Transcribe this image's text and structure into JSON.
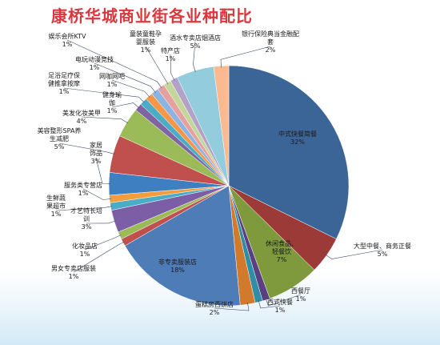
{
  "chart_data": {
    "type": "pie",
    "title": "康桥华城商业街各业种配比",
    "slices": [
      {
        "name": "中式快餐简餐",
        "value_label": "32%",
        "value": 32,
        "color": "#3c6597"
      },
      {
        "name": "大型中餐、商务正餐",
        "value_label": "5%",
        "value": 5,
        "color": "#9b3a37"
      },
      {
        "name": "休闲食品、轻餐饮",
        "value_label": "7%",
        "value": 7,
        "color": "#7e9a3c"
      },
      {
        "name": "西餐厅",
        "value_label": "1%",
        "value": 1,
        "color": "#5a4080"
      },
      {
        "name": "西式快餐",
        "value_label": "1%",
        "value": 1,
        "color": "#2f8da6"
      },
      {
        "name": "蛋糕房西饼店",
        "value_label": "2%",
        "value": 2,
        "color": "#d27a2c"
      },
      {
        "name": "非专卖服装店",
        "value_label": "18%",
        "value": 18,
        "color": "#4e7cb6"
      },
      {
        "name": "男女专卖店服装",
        "value_label": "1%",
        "value": 1,
        "color": "#c0504d"
      },
      {
        "name": "化妆品店",
        "value_label": "1%",
        "value": 1,
        "color": "#9bbb59"
      },
      {
        "name": "才艺特长培训",
        "value_label": "3%",
        "value": 3,
        "color": "#7b5ea6"
      },
      {
        "name": "生鲜蔬果超市",
        "value_label": "1%",
        "value": 1,
        "color": "#4bacc6"
      },
      {
        "name": "服务类专营店",
        "value_label": "1%",
        "value": 1,
        "color": "#f59d3d"
      },
      {
        "name": "家居饰品",
        "value_label": "3%",
        "value": 3,
        "color": "#3d7fc1"
      },
      {
        "name": "美容整形SPA养生减肥",
        "value_label": "5%",
        "value": 5,
        "color": "#c0504d"
      },
      {
        "name": "美发化妆美甲",
        "value_label": "4%",
        "value": 4,
        "color": "#9bbb59"
      },
      {
        "name": "健身瑜伽",
        "value_label": "1%",
        "value": 1,
        "color": "#8064a2"
      },
      {
        "name": "足浴足疗保健推拿按摩",
        "value_label": "1%",
        "value": 1,
        "color": "#4bacc6"
      },
      {
        "name": "网咖网吧",
        "value_label": "1%",
        "value": 1,
        "color": "#f79646"
      },
      {
        "name": "电玩动漫竞技",
        "value_label": "1%",
        "value": 1,
        "color": "#8db3e2"
      },
      {
        "name": "娱乐会所KTV",
        "value_label": "1%",
        "value": 1,
        "color": "#e6a0a0"
      },
      {
        "name": "童装童鞋孕婴服装",
        "value_label": "1%",
        "value": 1,
        "color": "#c4d79b"
      },
      {
        "name": "特产店",
        "value_label": "1%",
        "value": 1,
        "color": "#b3a2c7"
      },
      {
        "name": "酒水专卖店烟酒店",
        "value_label": "5%",
        "value": 5,
        "color": "#93cddd"
      },
      {
        "name": "银行保险典当金融配套",
        "value_label": "2%",
        "value": 2,
        "color": "#fab990"
      }
    ]
  }
}
